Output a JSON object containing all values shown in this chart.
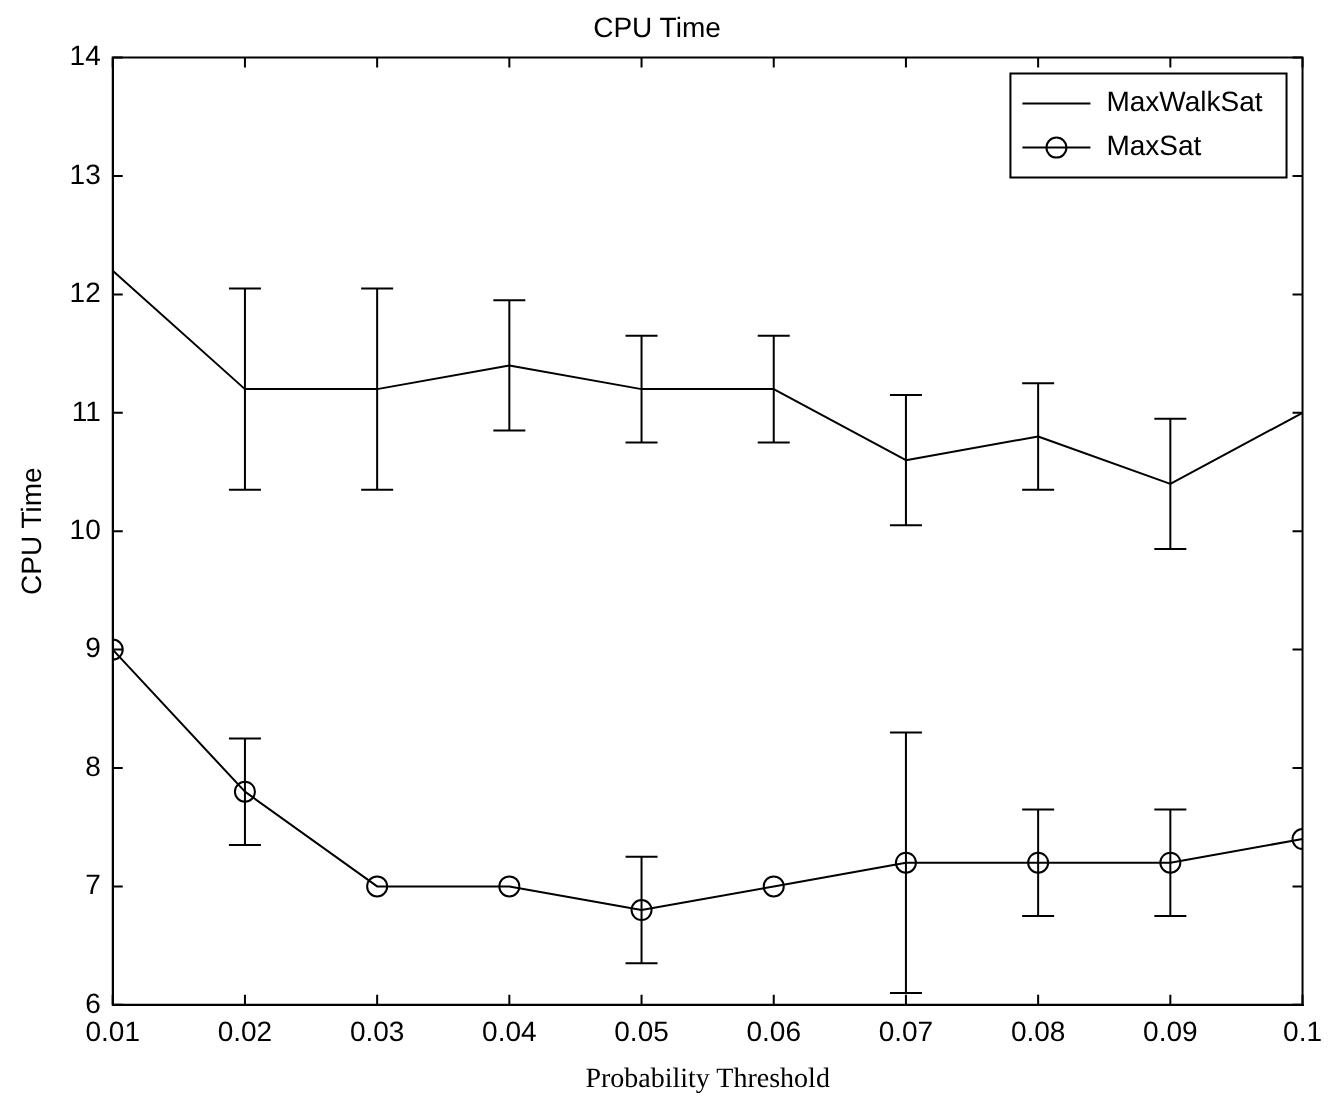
{
  "chart_data": {
    "type": "line",
    "title": "CPU Time",
    "xlabel": "Probability Threshold",
    "ylabel": "CPU Time",
    "x": [
      0.01,
      0.02,
      0.03,
      0.04,
      0.05,
      0.06,
      0.07,
      0.08,
      0.09,
      0.1
    ],
    "series": [
      {
        "name": "MaxWalkSat",
        "color": "#000000",
        "marker": "none",
        "values": [
          12.2,
          11.2,
          11.2,
          11.4,
          11.2,
          11.2,
          10.6,
          10.8,
          10.4,
          11.0
        ],
        "errors": [
          null,
          [
            10.35,
            12.05
          ],
          [
            10.35,
            12.05
          ],
          [
            10.85,
            11.95
          ],
          [
            10.75,
            11.65
          ],
          [
            10.75,
            11.65
          ],
          [
            10.05,
            11.15
          ],
          [
            10.35,
            11.25
          ],
          [
            9.85,
            10.95
          ],
          null
        ]
      },
      {
        "name": "MaxSat",
        "color": "#000000",
        "marker": "circle",
        "values": [
          9.0,
          7.8,
          7.0,
          7.0,
          6.8,
          7.0,
          7.2,
          7.2,
          7.2,
          7.4
        ],
        "errors": [
          null,
          [
            7.35,
            8.25
          ],
          null,
          null,
          [
            6.35,
            7.25
          ],
          null,
          [
            6.1,
            8.3
          ],
          [
            6.75,
            7.65
          ],
          [
            6.75,
            7.65
          ],
          null
        ]
      }
    ],
    "xlim": [
      0.01,
      0.1
    ],
    "xticks": [
      0.01,
      0.02,
      0.03,
      0.04,
      0.05,
      0.06,
      0.07,
      0.08,
      0.09,
      0.1
    ],
    "ylim": [
      6,
      14
    ],
    "yticks": [
      6,
      7,
      8,
      9,
      10,
      11,
      12,
      13,
      14
    ],
    "grid": false,
    "legend": "top right",
    "line_style": "solid"
  }
}
